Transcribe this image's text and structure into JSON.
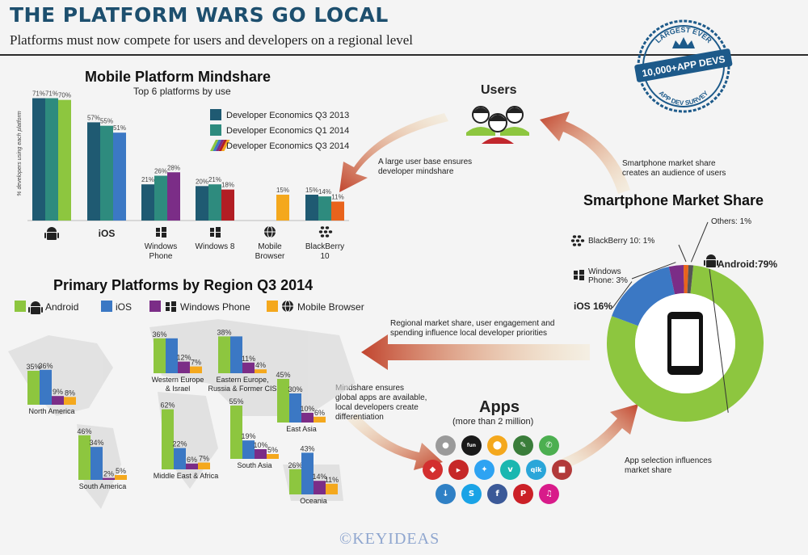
{
  "header": {
    "title": "THE PLATFORM WARS GO LOCAL",
    "subtitle": "Platforms must now compete for users and developers on a regional level"
  },
  "badge": {
    "line1": "LARGEST EVER",
    "line2": "10,000+APP DEVS",
    "line3": "APP DEV SURVEY"
  },
  "users": {
    "title": "Users"
  },
  "apps": {
    "title": "Apps",
    "subtitle": "(more than 2 million)"
  },
  "annotations": {
    "user_base": [
      "A large user base ensures",
      "developer mindshare"
    ],
    "market_audience": [
      "Smartphone market share",
      "creates an audience of users"
    ],
    "regional_share": [
      "Regional market share, user engagement and",
      "spending influence local developer priorities"
    ],
    "mindshare_apps": [
      "Mindshare ensures",
      "global apps are available,",
      "local developers create",
      "differentiation"
    ],
    "app_selection": [
      "App selection influences",
      "market share"
    ]
  },
  "watermark": "©KEYIDEAS",
  "colors": {
    "dev_q3_2013": "#1f5a72",
    "dev_q1_2014": "#2e8b7e",
    "android": "#8dc63f",
    "ios": "#3b78c4",
    "windows_phone": "#7b2d87",
    "mobile_browser": "#f4a81d",
    "windows8": "#b21e24",
    "blackberry": "#e8631c",
    "others": "#555555",
    "arrow": "#c1442e",
    "title": "#1d4f6e",
    "badge": "#1d5a8a"
  },
  "chart_data": [
    {
      "type": "bar",
      "title": "Mobile Platform Mindshare",
      "subtitle": "Top 6 platforms by use",
      "ylabel": "% developers using each platform",
      "categories": [
        "",
        "iOS",
        "Windows Phone",
        "Windows 8",
        "Mobile Browser",
        "BlackBerry 10"
      ],
      "category_lines": [
        [
          ""
        ],
        [
          "iOS"
        ],
        [
          "Windows",
          "Phone"
        ],
        [
          "Windows 8"
        ],
        [
          "Mobile",
          "Browser"
        ],
        [
          "BlackBerry",
          "10"
        ]
      ],
      "category_icons": [
        "android-icon",
        "",
        "windows-icon",
        "windows-icon",
        "globe-icon",
        "blackberry-icon"
      ],
      "series": [
        {
          "name": "Developer Economics Q3 2013",
          "values": [
            71,
            57,
            21,
            20,
            null,
            15
          ]
        },
        {
          "name": "Developer Economics Q1 2014",
          "values": [
            71,
            55,
            26,
            21,
            null,
            14
          ]
        },
        {
          "name": "Developer Economics Q3 2014",
          "values": [
            70,
            51,
            28,
            18,
            15,
            11
          ]
        }
      ],
      "value_labels": [
        [
          "71%",
          "57%",
          "21%",
          "20%",
          "",
          "15%"
        ],
        [
          "71%",
          "55%",
          "26%",
          "21%",
          "",
          "14%"
        ],
        [
          "70%",
          "51%",
          "28%",
          "18%",
          "15%",
          "11%"
        ]
      ],
      "ylim": [
        0,
        75
      ],
      "legend": "top-right"
    },
    {
      "type": "pie",
      "title": "Smartphone Market Share",
      "labels": [
        "Android:",
        "iOS",
        "Windows Phone:",
        "BlackBerry 10:",
        "Others:"
      ],
      "values": [
        79,
        16,
        3,
        1,
        1
      ],
      "value_labels": [
        "79%",
        "16%",
        "3%",
        "1%",
        "1%"
      ],
      "label_lines": [
        [
          "Android:79%"
        ],
        [
          "iOS 16%"
        ],
        [
          "Windows",
          "Phone: 3%"
        ],
        [
          "BlackBerry 10: 1%"
        ],
        [
          "Others: 1%"
        ]
      ]
    },
    {
      "type": "bar",
      "title": "Primary Platforms by Region Q3 2014",
      "series_names": [
        "Android",
        "iOS",
        "Windows Phone",
        "Mobile Browser"
      ],
      "categories": [
        "North America",
        "South America",
        "Western Europe & Israel",
        "Middle East & Africa",
        "Eastern Europe, Russia & Former CIS",
        "South Asia",
        "East Asia",
        "Oceania"
      ],
      "category_lines": [
        [
          "North America"
        ],
        [
          "South America"
        ],
        [
          "Western Europe",
          "& Israel"
        ],
        [
          "Middle East & Africa"
        ],
        [
          "Eastern Europe,",
          "Russia & Former CIS"
        ],
        [
          "South Asia"
        ],
        [
          "East Asia"
        ],
        [
          "Oceania"
        ]
      ],
      "values": [
        [
          35,
          36,
          9,
          8
        ],
        [
          46,
          34,
          2,
          5
        ],
        [
          36,
          36,
          12,
          7
        ],
        [
          62,
          22,
          6,
          7
        ],
        [
          38,
          38,
          11,
          4
        ],
        [
          55,
          19,
          10,
          5
        ],
        [
          45,
          30,
          10,
          6
        ],
        [
          26,
          43,
          14,
          11
        ]
      ],
      "value_labels": [
        [
          "35%",
          "36%",
          "9%",
          "8%"
        ],
        [
          "46%",
          "34%",
          "2%",
          "5%"
        ],
        [
          "36%",
          "",
          "12%",
          "7%"
        ],
        [
          "62%",
          "22%",
          "6%",
          "7%"
        ],
        [
          "38%",
          "",
          "11%",
          "4%"
        ],
        [
          "55%",
          "19%",
          "10%",
          "5%"
        ],
        [
          "45%",
          "30%",
          "10%",
          "6%"
        ],
        [
          "26%",
          "43%",
          "14%",
          "11%"
        ]
      ],
      "legend": "top"
    }
  ]
}
